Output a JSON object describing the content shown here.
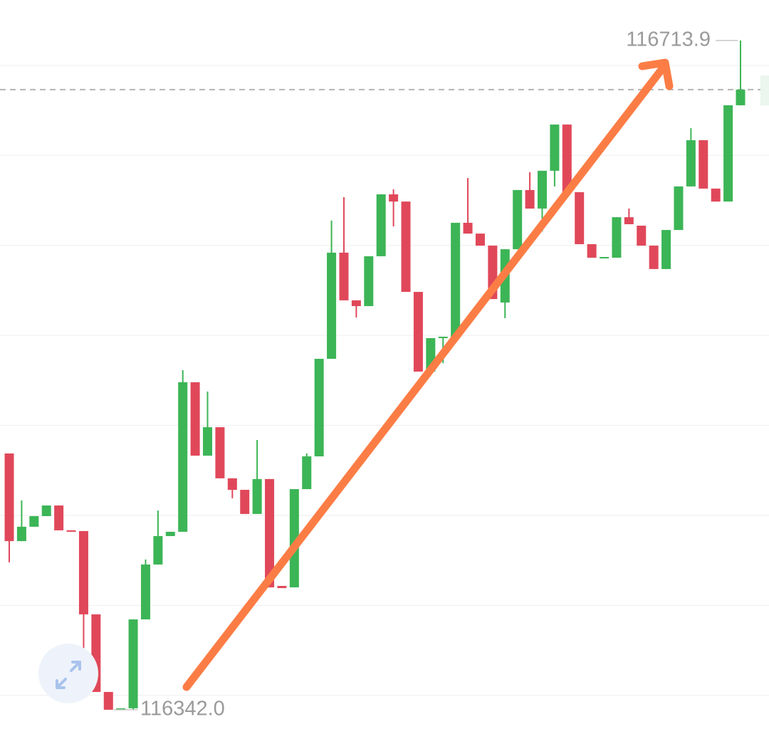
{
  "chart_data": {
    "type": "candlestick",
    "ylim": [
      116331.3,
      116736.4
    ],
    "gridlines": [
      116350,
      116400,
      116450,
      116500,
      116550,
      116600,
      116650,
      116700
    ],
    "grid": true,
    "last_price": 116686.6,
    "up_color": "#3cb556",
    "down_color": "#e0485a",
    "open": [
      116484.4,
      116435.7,
      116443.7,
      116449.6,
      116455.5,
      116441.7,
      116441.3,
      116395.0,
      116351.9,
      116342.0,
      116342.8,
      116392.2,
      116422.7,
      116438.5,
      116440.9,
      116524.0,
      116483.2,
      116499.0,
      116470.6,
      116464.2,
      116450.8,
      116470.2,
      116410.8,
      116410.0,
      116464.6,
      116482.8,
      116537.0,
      116596.0,
      116569.5,
      116566.3,
      116594.0,
      116628.4,
      116624.4,
      116574.2,
      116529.9,
      116548.5,
      116548.5,
      116612.6,
      116606.6,
      116599.9,
      116568.3,
      116597.9,
      116630.8,
      116620.5,
      116641.5,
      116667.2,
      116629.6,
      116600.7,
      116592.8,
      116593.2,
      116615.7,
      116611.0,
      116599.9,
      116586.9,
      116608.6,
      116632.8,
      116658.5,
      116631.6,
      116624.4,
      116677.9
    ],
    "high": [
      116484.4,
      116458.3,
      116449.6,
      116455.5,
      116455.5,
      116441.7,
      116441.3,
      116395.0,
      116351.9,
      116342.8,
      116392.2,
      116425.5,
      116452.7,
      116440.9,
      116530.7,
      116524.0,
      116518.8,
      116499.0,
      116470.6,
      116464.2,
      116491.9,
      116470.2,
      116410.8,
      116464.6,
      116484.4,
      116537.0,
      116613.8,
      116626.8,
      116569.5,
      116594.0,
      116628.4,
      116631.2,
      116624.4,
      116574.2,
      116548.5,
      116549.3,
      116612.6,
      116637.5,
      116606.6,
      116599.9,
      116597.9,
      116630.8,
      116640.7,
      116641.5,
      116667.2,
      116667.2,
      116629.6,
      116600.7,
      116593.6,
      116615.7,
      116620.5,
      116611.0,
      116599.9,
      116608.6,
      116632.8,
      116665.2,
      116658.5,
      116631.6,
      116677.9,
      116713.9
    ],
    "low": [
      116423.9,
      116435.7,
      116443.7,
      116449.6,
      116441.7,
      116440.9,
      116370.5,
      116351.9,
      116342.0,
      116342.0,
      116342.0,
      116392.2,
      116422.7,
      116438.5,
      116440.9,
      116483.2,
      116483.2,
      116470.6,
      116459.5,
      116450.8,
      116450.8,
      116410.0,
      116409.6,
      116410.0,
      116464.6,
      116482.8,
      116537.0,
      116569.5,
      116560.0,
      116566.3,
      116594.0,
      116610.6,
      116574.2,
      116529.9,
      116529.9,
      116534.6,
      116548.5,
      116606.6,
      116599.9,
      116570.2,
      116559.6,
      116597.9,
      116620.5,
      116607.8,
      116632.8,
      116629.6,
      116600.7,
      116593.2,
      116592.8,
      116593.2,
      116611.8,
      116599.9,
      116586.9,
      116586.9,
      116608.6,
      116632.8,
      116631.6,
      116624.4,
      116624.4,
      116677.9
    ],
    "close": [
      116435.7,
      116443.7,
      116449.6,
      116455.5,
      116441.7,
      116440.9,
      116395.0,
      116351.9,
      116342.0,
      116342.8,
      116392.2,
      116422.7,
      116438.5,
      116440.9,
      116524.0,
      116483.2,
      116499.0,
      116470.6,
      116464.2,
      116450.8,
      116470.2,
      116410.0,
      116409.6,
      116464.6,
      116482.8,
      116537.0,
      116596.0,
      116569.5,
      116566.3,
      116594.0,
      116628.4,
      116624.4,
      116574.2,
      116529.9,
      116548.5,
      116549.3,
      116612.6,
      116606.6,
      116599.9,
      116570.2,
      116597.9,
      116630.8,
      116620.5,
      116641.5,
      116667.2,
      116629.6,
      116600.7,
      116593.2,
      116593.6,
      116615.7,
      116611.8,
      116599.9,
      116586.9,
      116608.6,
      116632.8,
      116658.5,
      116631.6,
      116624.4,
      116677.9,
      116686.6
    ],
    "annotations": [
      {
        "label": "116713.9",
        "value": 116713.9
      },
      {
        "label": "116342.0",
        "value": 116342.0
      }
    ]
  }
}
